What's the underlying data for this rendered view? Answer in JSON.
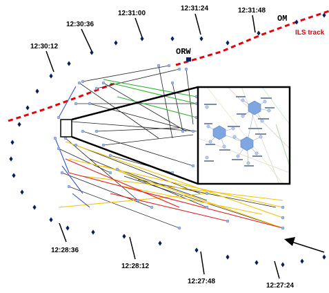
{
  "time_labels": [
    {
      "id": "t-12-31-00",
      "text": "12:31:00"
    },
    {
      "id": "t-12-31-24",
      "text": "12:31:24"
    },
    {
      "id": "t-12-31-48",
      "text": "12:31:48"
    },
    {
      "id": "t-12-30-36",
      "text": "12:30:36"
    },
    {
      "id": "t-12-30-12",
      "text": "12:30:12"
    },
    {
      "id": "t-12-28-36",
      "text": "12:28:36"
    },
    {
      "id": "t-12-28-12",
      "text": "12:28:12"
    },
    {
      "id": "t-12-27-48",
      "text": "12:27:48"
    },
    {
      "id": "t-12-27-24",
      "text": "12:27:24"
    }
  ],
  "waypoints": {
    "orw": "ORW",
    "om": "OM"
  },
  "ils_track_label": "ILS track",
  "colors": {
    "track_dots": "#0a1f5c",
    "ils": "#e8000b",
    "graph_black": "#222222",
    "graph_green": "#2bb52b",
    "graph_yellow": "#f2c400",
    "graph_red": "#e02020",
    "graph_blue": "#3355cc",
    "node": "#9fb8e6",
    "hub": "#7ea6e0"
  },
  "arrow": "arrow-pointer-icon"
}
